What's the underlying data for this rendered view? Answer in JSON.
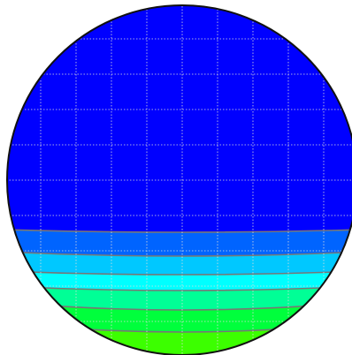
{
  "chart_data": {
    "type": "heatmap",
    "title": "",
    "xlabel": "",
    "ylabel": "",
    "grid": true,
    "legend": "none",
    "colors": {
      "background": "#0000ff",
      "outline": "#111111",
      "contour_line": "#777777",
      "grid_line": "#dddddd"
    },
    "levels": [
      {
        "color": "#0000ff",
        "value": 0.0
      },
      {
        "color": "#0064ff",
        "value": 1.0
      },
      {
        "color": "#00c8ff",
        "value": 2.0
      },
      {
        "color": "#00ffff",
        "value": 3.0
      },
      {
        "color": "#00ff96",
        "value": 4.0
      },
      {
        "color": "#00ff3c",
        "value": 5.0
      },
      {
        "color": "#3cff00",
        "value": 6.0
      }
    ]
  }
}
